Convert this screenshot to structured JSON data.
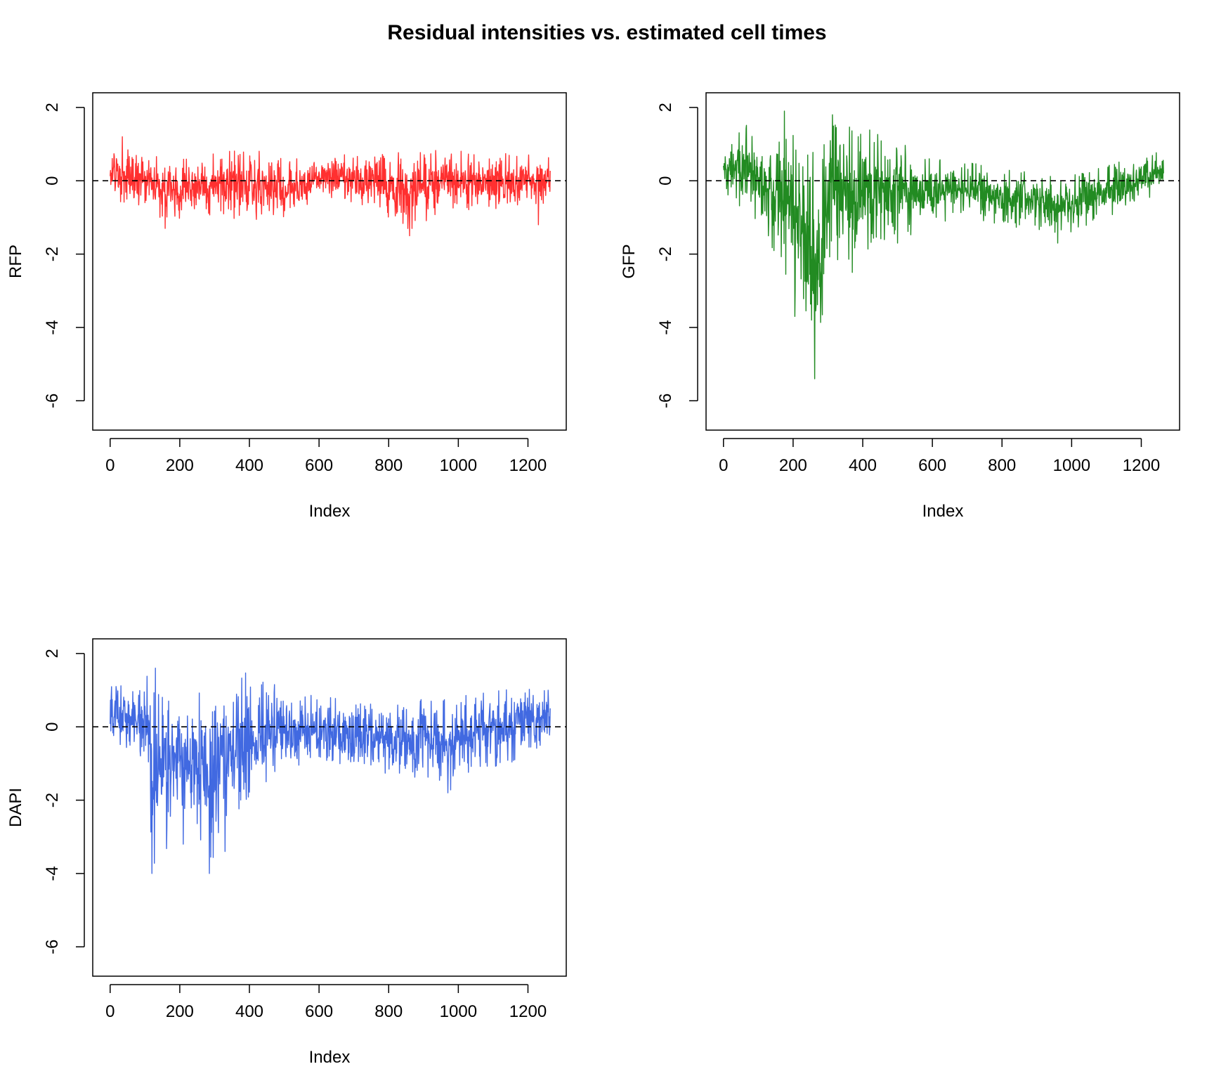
{
  "figure": {
    "title": "Residual intensities vs. estimated cell times"
  },
  "chart_data": [
    {
      "type": "line",
      "panel": "top-left",
      "xlabel": "Index",
      "ylabel": "RFP",
      "xlim": [
        -50,
        1310
      ],
      "ylim": [
        -6.8,
        2.4
      ],
      "xticks": [
        0,
        200,
        400,
        600,
        800,
        1000,
        1200
      ],
      "xtick_labels": [
        "0",
        "200",
        "400",
        "600",
        "800",
        "1000",
        "1200"
      ],
      "yticks": [
        -6,
        -4,
        -2,
        0,
        2
      ],
      "ytick_labels": [
        "-6",
        "-4",
        "-2",
        "0",
        "2"
      ],
      "reference_line": {
        "y": 0,
        "style": "dashed"
      },
      "color": "#ff3030",
      "n": 1265,
      "envelope": [
        {
          "x": 0,
          "y": [
            -0.2,
            0.5
          ]
        },
        {
          "x": 30,
          "y": [
            -0.9,
            1.2
          ]
        },
        {
          "x": 100,
          "y": [
            -0.7,
            0.6
          ]
        },
        {
          "x": 160,
          "y": [
            -1.3,
            0.8
          ]
        },
        {
          "x": 250,
          "y": [
            -0.9,
            0.6
          ]
        },
        {
          "x": 330,
          "y": [
            -1.1,
            0.95
          ]
        },
        {
          "x": 420,
          "y": [
            -1.2,
            0.85
          ]
        },
        {
          "x": 550,
          "y": [
            -0.9,
            0.6
          ]
        },
        {
          "x": 600,
          "y": [
            -0.5,
            0.7
          ]
        },
        {
          "x": 650,
          "y": [
            -0.6,
            0.9
          ]
        },
        {
          "x": 760,
          "y": [
            -0.7,
            0.7
          ]
        },
        {
          "x": 860,
          "y": [
            -1.5,
            0.85
          ]
        },
        {
          "x": 950,
          "y": [
            -0.8,
            0.9
          ]
        },
        {
          "x": 1050,
          "y": [
            -0.8,
            0.75
          ]
        },
        {
          "x": 1150,
          "y": [
            -0.8,
            0.75
          ]
        },
        {
          "x": 1265,
          "y": [
            -0.6,
            0.7
          ]
        }
      ],
      "spikes": [
        {
          "x": 35,
          "y": 1.2
        },
        {
          "x": 158,
          "y": -1.3
        },
        {
          "x": 860,
          "y": -1.5
        },
        {
          "x": 1230,
          "y": -1.2
        }
      ]
    },
    {
      "type": "line",
      "panel": "top-right",
      "xlabel": "Index",
      "ylabel": "GFP",
      "xlim": [
        -50,
        1310
      ],
      "ylim": [
        -6.8,
        2.4
      ],
      "xticks": [
        0,
        200,
        400,
        600,
        800,
        1000,
        1200
      ],
      "xtick_labels": [
        "0",
        "200",
        "400",
        "600",
        "800",
        "1000",
        "1200"
      ],
      "yticks": [
        -6,
        -4,
        -2,
        0,
        2
      ],
      "ytick_labels": [
        "-6",
        "-4",
        "-2",
        "0",
        "2"
      ],
      "reference_line": {
        "y": 0,
        "style": "dashed"
      },
      "color": "#228b22",
      "n": 1265,
      "envelope": [
        {
          "x": 0,
          "y": [
            -0.3,
            0.8
          ]
        },
        {
          "x": 50,
          "y": [
            -0.8,
            1.7
          ]
        },
        {
          "x": 120,
          "y": [
            -1.5,
            1.3
          ]
        },
        {
          "x": 180,
          "y": [
            -2.6,
            1.9
          ]
        },
        {
          "x": 230,
          "y": [
            -3.7,
            1.2
          ]
        },
        {
          "x": 265,
          "y": [
            -5.3,
            0.8
          ]
        },
        {
          "x": 310,
          "y": [
            -2.5,
            1.8
          ]
        },
        {
          "x": 400,
          "y": [
            -2.0,
            1.5
          ]
        },
        {
          "x": 500,
          "y": [
            -1.7,
            1.1
          ]
        },
        {
          "x": 600,
          "y": [
            -1.2,
            0.7
          ]
        },
        {
          "x": 700,
          "y": [
            -1.0,
            0.5
          ]
        },
        {
          "x": 800,
          "y": [
            -1.2,
            0.4
          ]
        },
        {
          "x": 900,
          "y": [
            -1.4,
            0.2
          ]
        },
        {
          "x": 960,
          "y": [
            -1.6,
            0.1
          ]
        },
        {
          "x": 1050,
          "y": [
            -1.2,
            0.3
          ]
        },
        {
          "x": 1150,
          "y": [
            -0.8,
            0.6
          ]
        },
        {
          "x": 1265,
          "y": [
            -0.3,
            0.9
          ]
        }
      ],
      "spikes": [
        {
          "x": 175,
          "y": 1.9
        },
        {
          "x": 205,
          "y": -3.7
        },
        {
          "x": 262,
          "y": -5.4
        },
        {
          "x": 253,
          "y": -3.8
        },
        {
          "x": 313,
          "y": 1.8
        },
        {
          "x": 370,
          "y": -2.5
        },
        {
          "x": 500,
          "y": -1.7
        },
        {
          "x": 960,
          "y": -1.7
        }
      ]
    },
    {
      "type": "line",
      "panel": "bottom-left",
      "xlabel": "Index",
      "ylabel": "DAPI",
      "xlim": [
        -50,
        1310
      ],
      "ylim": [
        -6.8,
        2.4
      ],
      "xticks": [
        0,
        200,
        400,
        600,
        800,
        1000,
        1200
      ],
      "xtick_labels": [
        "0",
        "200",
        "400",
        "600",
        "800",
        "1000",
        "1200"
      ],
      "yticks": [
        -6,
        -4,
        -2,
        0,
        2
      ],
      "ytick_labels": [
        "-6",
        "-4",
        "-2",
        "0",
        "2"
      ],
      "reference_line": {
        "y": 0,
        "style": "dashed"
      },
      "color": "#4169e1",
      "n": 1265,
      "envelope": [
        {
          "x": 0,
          "y": [
            -0.3,
            1.2
          ]
        },
        {
          "x": 60,
          "y": [
            -0.8,
            1.1
          ]
        },
        {
          "x": 100,
          "y": [
            -0.8,
            1.4
          ]
        },
        {
          "x": 125,
          "y": [
            -4.0,
            1.6
          ]
        },
        {
          "x": 180,
          "y": [
            -3.0,
            1.2
          ]
        },
        {
          "x": 230,
          "y": [
            -2.5,
            1.1
          ]
        },
        {
          "x": 285,
          "y": [
            -4.0,
            1.2
          ]
        },
        {
          "x": 330,
          "y": [
            -3.3,
            1.5
          ]
        },
        {
          "x": 400,
          "y": [
            -2.0,
            1.5
          ]
        },
        {
          "x": 500,
          "y": [
            -1.5,
            1.1
          ]
        },
        {
          "x": 600,
          "y": [
            -0.9,
            0.8
          ]
        },
        {
          "x": 700,
          "y": [
            -1.5,
            0.8
          ]
        },
        {
          "x": 800,
          "y": [
            -1.4,
            0.9
          ]
        },
        {
          "x": 900,
          "y": [
            -1.5,
            0.8
          ]
        },
        {
          "x": 970,
          "y": [
            -1.8,
            0.8
          ]
        },
        {
          "x": 1050,
          "y": [
            -1.2,
            0.9
          ]
        },
        {
          "x": 1150,
          "y": [
            -1.0,
            1.2
          ]
        },
        {
          "x": 1265,
          "y": [
            -0.6,
            1.1
          ]
        }
      ],
      "spikes": [
        {
          "x": 120,
          "y": -4.0
        },
        {
          "x": 130,
          "y": 1.6
        },
        {
          "x": 285,
          "y": -4.0
        },
        {
          "x": 330,
          "y": -3.4
        },
        {
          "x": 210,
          "y": -3.2
        },
        {
          "x": 970,
          "y": -1.8
        }
      ]
    }
  ]
}
